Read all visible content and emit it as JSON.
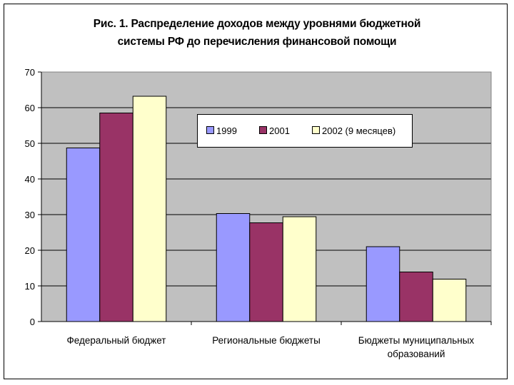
{
  "title_line1": "Рис. 1. Распределение доходов между уровнями бюджетной",
  "title_line2": "системы РФ до перечисления финансовой помощи",
  "chart_data": {
    "type": "bar",
    "title": "Рис. 1. Распределение доходов между уровнями бюджетной системы РФ до перечисления финансовой помощи",
    "xlabel": "",
    "ylabel": "",
    "ylim": [
      0,
      70
    ],
    "yticks": [
      "0",
      "10",
      "20",
      "30",
      "40",
      "50",
      "60",
      "70"
    ],
    "categories": [
      [
        "Федеральный бюджет"
      ],
      [
        "Региональные бюджеты"
      ],
      [
        "Бюджеты муниципальных",
        "образований"
      ]
    ],
    "series": [
      {
        "name": "1999",
        "color": "#9999ff",
        "values": [
          48.7,
          30.3,
          21.0
        ]
      },
      {
        "name": "2001",
        "color": "#993366",
        "values": [
          58.5,
          27.7,
          13.9
        ]
      },
      {
        "name": "2002 (9 месяцев)",
        "color": "#ffffcc",
        "values": [
          63.2,
          29.4,
          11.9
        ]
      }
    ],
    "grid": true,
    "plot_background": "#c0c0c0",
    "legend_position": "top-right"
  }
}
